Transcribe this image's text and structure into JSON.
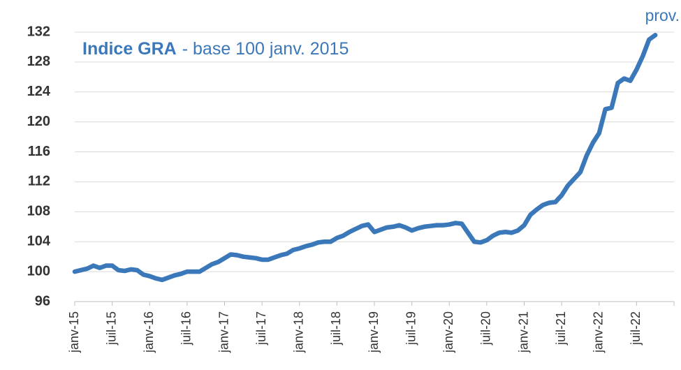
{
  "chart_data": {
    "type": "line",
    "title": "Indice GRA",
    "subtitle": "- base 100 janv. 2015",
    "annotation": "prov.",
    "categories": [
      "janv-15",
      null,
      null,
      null,
      null,
      null,
      "juil-15",
      null,
      null,
      null,
      null,
      null,
      "janv-16",
      null,
      null,
      null,
      null,
      null,
      "juil-16",
      null,
      null,
      null,
      null,
      null,
      "janv-17",
      null,
      null,
      null,
      null,
      null,
      "juil-17",
      null,
      null,
      null,
      null,
      null,
      "janv-18",
      null,
      null,
      null,
      null,
      null,
      "juil-18",
      null,
      null,
      null,
      null,
      null,
      "janv-19",
      null,
      null,
      null,
      null,
      null,
      "juil-19",
      null,
      null,
      null,
      null,
      null,
      "janv-20",
      null,
      null,
      null,
      null,
      null,
      "juil-20",
      null,
      null,
      null,
      null,
      null,
      "janv-21",
      null,
      null,
      null,
      null,
      null,
      "juil-21",
      null,
      null,
      null,
      null,
      null,
      "janv-22",
      null,
      null,
      null,
      null,
      null,
      "juil-22",
      null,
      null,
      null,
      null,
      null
    ],
    "series": [
      {
        "name": "Indice GRA",
        "color": "#3b78b9",
        "values": [
          100.0,
          100.2,
          100.4,
          100.8,
          100.5,
          100.8,
          100.8,
          100.2,
          100.1,
          100.3,
          100.2,
          99.6,
          99.4,
          99.1,
          98.9,
          99.2,
          99.5,
          99.7,
          100.0,
          100.0,
          100.0,
          100.5,
          101.0,
          101.3,
          101.8,
          102.3,
          102.2,
          102.0,
          101.9,
          101.8,
          101.6,
          101.6,
          101.9,
          102.2,
          102.4,
          102.9,
          103.1,
          103.4,
          103.6,
          103.9,
          104.0,
          104.0,
          104.5,
          104.8,
          105.3,
          105.7,
          106.1,
          106.3,
          105.3,
          105.6,
          105.9,
          106.0,
          106.2,
          105.9,
          105.5,
          105.8,
          106.0,
          106.1,
          106.2,
          106.2,
          106.3,
          106.5,
          106.4,
          105.2,
          104.0,
          103.9,
          104.2,
          104.8,
          105.2,
          105.3,
          105.2,
          105.5,
          106.2,
          107.6,
          108.3,
          108.9,
          109.2,
          109.3,
          110.2,
          111.5,
          112.4,
          113.3,
          115.5,
          117.2,
          118.5,
          121.7,
          121.9,
          125.2,
          125.8,
          125.5,
          127.0,
          128.8,
          131.0,
          131.6,
          null,
          null
        ]
      }
    ],
    "ylim": [
      96,
      132
    ],
    "yticks": [
      96,
      100,
      104,
      108,
      112,
      116,
      120,
      124,
      128,
      132
    ],
    "grid": true
  }
}
